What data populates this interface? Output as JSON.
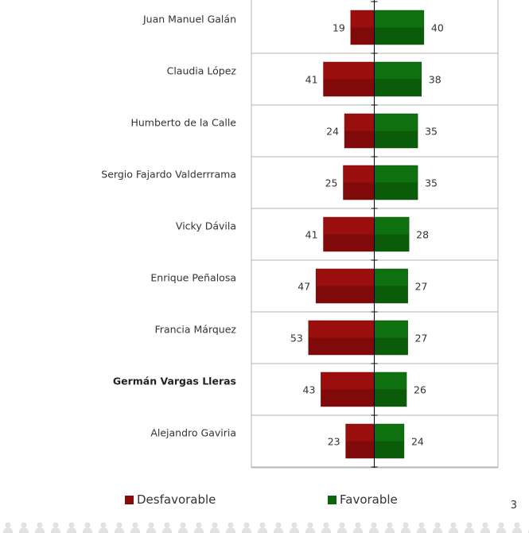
{
  "chart_data": {
    "type": "bar",
    "orientation": "horizontal-diverging",
    "categories": [
      "Juan Manuel Galán",
      "Claudia López",
      "Humberto de la Calle",
      "Sergio Fajardo Valderrrama",
      "Vicky Dávila",
      "Enrique Peñalosa",
      "Francia Márquez",
      "Germán Vargas Lleras",
      "Alejandro Gaviria"
    ],
    "bold_categories": [
      "Germán Vargas Lleras"
    ],
    "series": [
      {
        "name": "Desfavorable",
        "color": "#8b0a0a",
        "direction": "left",
        "values": [
          19,
          41,
          24,
          25,
          41,
          47,
          53,
          43,
          23
        ]
      },
      {
        "name": "Favorable",
        "color": "#0b650b",
        "direction": "right",
        "values": [
          40,
          38,
          35,
          35,
          28,
          27,
          27,
          26,
          24
        ]
      }
    ],
    "xlim": [
      -100,
      100
    ],
    "grid": true,
    "legend_position": "bottom"
  },
  "legend": {
    "unfavorable": "Desfavorable",
    "favorable": "Favorable"
  },
  "page_number": "3",
  "colors": {
    "unfavorable": "#8b0a0a",
    "favorable": "#0b650b",
    "grid": "#b5b5b5",
    "footer_icons": "#e2e2e2"
  }
}
